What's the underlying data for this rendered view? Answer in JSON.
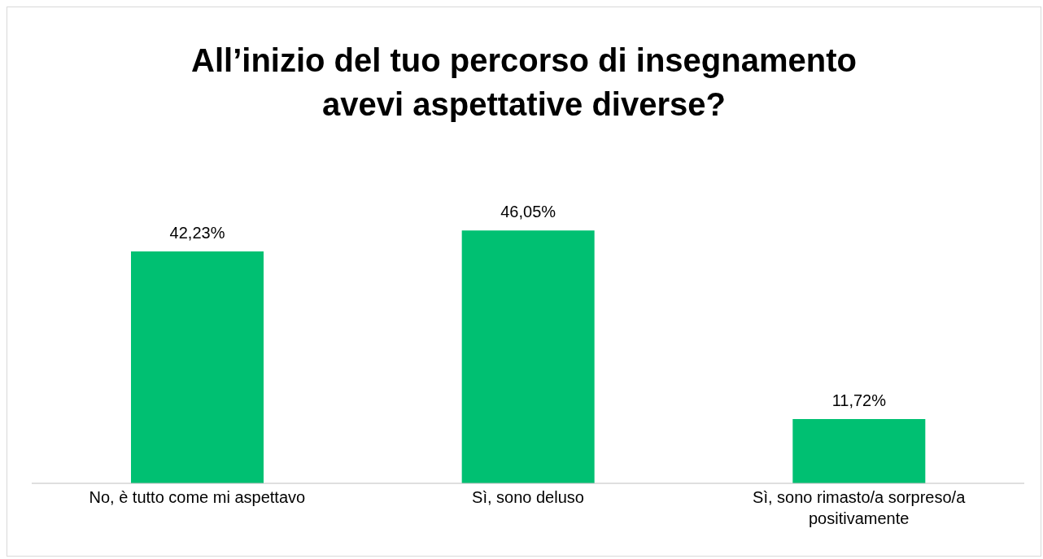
{
  "chart_data": {
    "type": "bar",
    "title": "All’inizio del tuo percorso di insegnamento avevi aspettative diverse?",
    "categories": [
      "No, è tutto come mi aspettavo",
      "Sì, sono deluso",
      "Sì, sono rimasto/a sorpreso/a positivamente"
    ],
    "values": [
      42.23,
      46.05,
      11.72
    ],
    "value_labels": [
      "42,23%",
      "46,05%",
      "11,72%"
    ],
    "color": "#00c072",
    "tick_labels": "x"
  }
}
